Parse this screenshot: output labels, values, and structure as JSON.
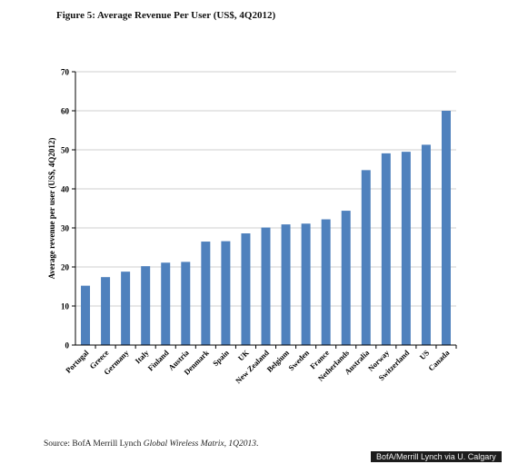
{
  "figure_title": "Figure 5: Average Revenue Per User (US$, 4Q2012)",
  "source": {
    "prefix": "Source: BofA Merrill Lynch ",
    "italic": "Global Wireless Matrix, 1Q2013",
    "suffix": "."
  },
  "credit": "BofA/Merrill Lynch via U. Calgary",
  "colors": {
    "bar": "#4f81bd",
    "axis": "#000000",
    "grid": "#bfbfbf"
  },
  "chart_data": {
    "type": "bar",
    "title": "Figure 5: Average Revenue Per User (US$, 4Q2012)",
    "xlabel": "",
    "ylabel": "Average revenue per user (US$, 4Q2012)",
    "ylim": [
      0,
      70
    ],
    "yticks": [
      0,
      10,
      20,
      30,
      40,
      50,
      60,
      70
    ],
    "grid": true,
    "categories": [
      "Portugal",
      "Greece",
      "Germany",
      "Italy",
      "Finland",
      "Austria",
      "Denmark",
      "Spain",
      "UK",
      "New Zealand",
      "Belgium",
      "Sweden",
      "France",
      "Netherlands",
      "Australia",
      "Norway",
      "Switzerland",
      "US",
      "Canada"
    ],
    "values": [
      15.2,
      17.4,
      18.8,
      20.2,
      21.1,
      21.3,
      26.5,
      26.6,
      28.6,
      30.1,
      30.9,
      31.1,
      32.2,
      34.4,
      44.8,
      49.1,
      49.5,
      51.3,
      60.0
    ]
  }
}
